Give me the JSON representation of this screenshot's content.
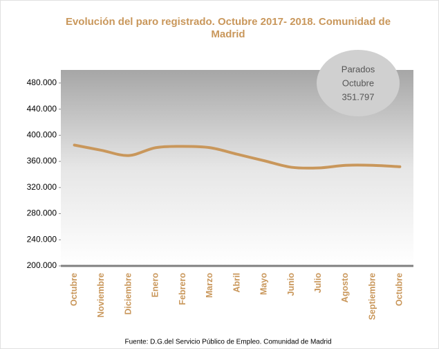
{
  "chart_data": {
    "type": "line",
    "title": "Evolución del paro registrado. Octubre 2017- 2018. Comunidad de Madrid",
    "title_lines": [
      "Evolución del paro registrado. Octubre 2017- 2018. Comunidad de",
      "Madrid"
    ],
    "categories": [
      "Octubre",
      "Noviembre",
      "Diciembre",
      "Enero",
      "Febrero",
      "Marzo",
      "Abril",
      "Mayo",
      "Junio",
      "Julio",
      "Agosto",
      "Septiembre",
      "Octubre"
    ],
    "series": [
      {
        "name": "Parados",
        "color": "#c9975b",
        "values": [
          385000,
          377000,
          369000,
          381000,
          383000,
          381000,
          371000,
          361000,
          351000,
          350000,
          354000,
          354000,
          351797
        ]
      }
    ],
    "ylim": [
      200000,
      500000
    ],
    "yticks": [
      {
        "value": 200000,
        "label": "200.000"
      },
      {
        "value": 240000,
        "label": "240.000"
      },
      {
        "value": 280000,
        "label": "280.000"
      },
      {
        "value": 320000,
        "label": "320.000"
      },
      {
        "value": 360000,
        "label": "360.000"
      },
      {
        "value": 400000,
        "label": "400.000"
      },
      {
        "value": 440000,
        "label": "440.000"
      },
      {
        "value": 480000,
        "label": "480.000"
      }
    ],
    "annotation": [
      "Parados",
      "Octubre",
      "351.797"
    ],
    "source": "Fuente: D.G.del Servicio Público de Empleo. Comunidad  de Madrid"
  }
}
